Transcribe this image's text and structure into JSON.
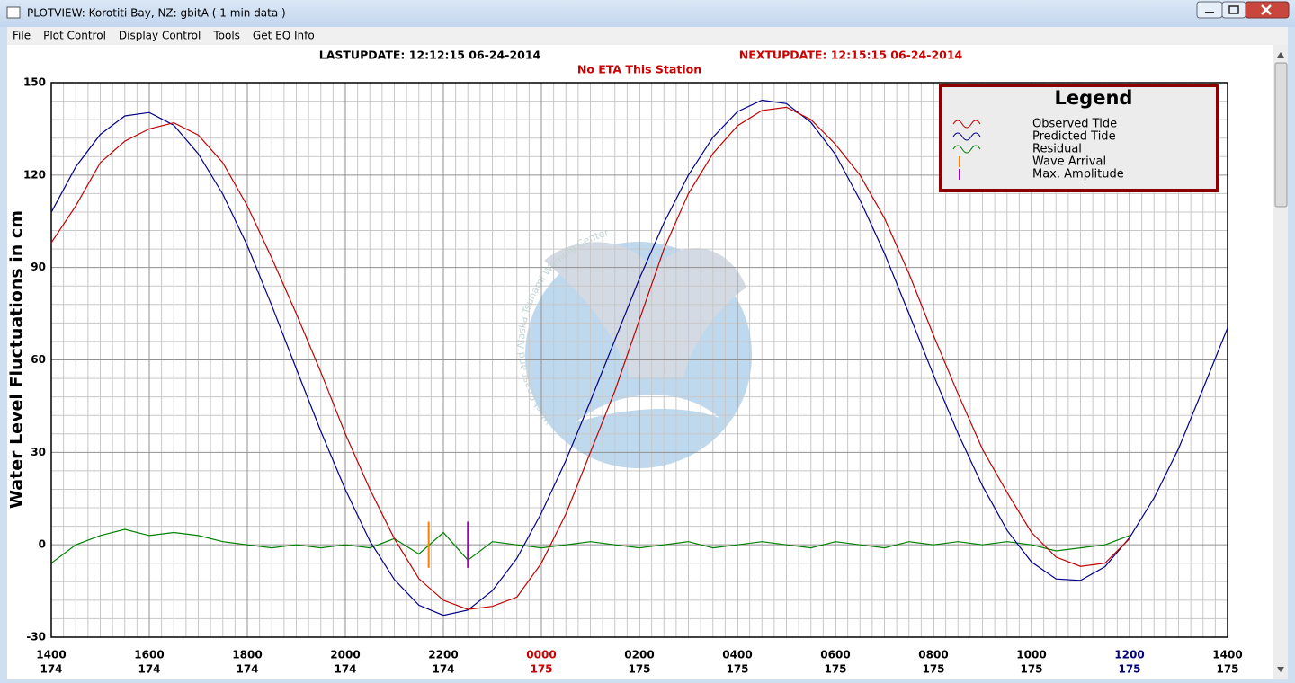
{
  "window": {
    "title": "PLOTVIEW:   Korotiti Bay, NZ: gbitA ( 1 min data )"
  },
  "menu": [
    "File",
    "Plot Control",
    "Display Control",
    "Tools",
    "Get EQ Info"
  ],
  "chart_data": {
    "type": "line",
    "header": {
      "last_update": "LASTUPDATE: 12:12:15 06-24-2014",
      "next_update": "NEXTUPDATE: 12:15:15 06-24-2014",
      "eta": "No ETA This Station"
    },
    "ylabel": "Water Level Fluctuations in cm",
    "legend_title": "Legend",
    "legend": "upper right",
    "watermark": "West Coast and Alaska Tsunami Warning Center",
    "grid": true,
    "xlim": [
      0,
      24
    ],
    "xticks": [
      {
        "value": 0,
        "label": "1400",
        "day": "174",
        "color": "#000000"
      },
      {
        "value": 2,
        "label": "1600",
        "day": "174",
        "color": "#000000"
      },
      {
        "value": 4,
        "label": "1800",
        "day": "174",
        "color": "#000000"
      },
      {
        "value": 6,
        "label": "2000",
        "day": "174",
        "color": "#000000"
      },
      {
        "value": 8,
        "label": "2200",
        "day": "174",
        "color": "#000000"
      },
      {
        "value": 10,
        "label": "0000",
        "day": "175",
        "color": "#cc0000"
      },
      {
        "value": 12,
        "label": "0200",
        "day": "175",
        "color": "#000000"
      },
      {
        "value": 14,
        "label": "0400",
        "day": "175",
        "color": "#000000"
      },
      {
        "value": 16,
        "label": "0600",
        "day": "175",
        "color": "#000000"
      },
      {
        "value": 18,
        "label": "0800",
        "day": "175",
        "color": "#000000"
      },
      {
        "value": 20,
        "label": "1000",
        "day": "175",
        "color": "#000000"
      },
      {
        "value": 22,
        "label": "1200",
        "day": "175",
        "color": "#000080"
      },
      {
        "value": 24,
        "label": "1400",
        "day": "175",
        "color": "#000000"
      }
    ],
    "ylim": [
      -30,
      150
    ],
    "yticks": [
      -30,
      0,
      30,
      60,
      90,
      120,
      150
    ],
    "x": [
      0,
      0.5,
      1,
      1.5,
      2,
      2.5,
      3,
      3.5,
      4,
      4.5,
      5,
      5.5,
      6,
      6.5,
      7,
      7.5,
      8,
      8.5,
      9,
      9.5,
      10,
      10.5,
      11,
      11.5,
      12,
      12.5,
      13,
      13.5,
      14,
      14.5,
      15,
      15.5,
      16,
      16.5,
      17,
      17.5,
      18,
      18.5,
      19,
      19.5,
      20,
      20.5,
      21,
      21.5,
      22,
      22.5,
      23,
      23.5,
      24
    ],
    "series": [
      {
        "name": "Observed Tide",
        "color": "#c00000",
        "values": [
          98,
          110,
          124,
          131,
          135,
          137,
          133,
          124,
          110,
          93,
          75,
          56,
          36,
          18,
          2,
          -11,
          -18,
          -21,
          -20,
          -17,
          -6,
          10,
          30,
          50,
          73,
          96,
          114,
          127,
          136,
          141,
          142,
          138,
          130,
          120,
          106,
          88,
          68,
          49,
          31,
          17,
          4,
          -4,
          -7,
          -6,
          2,
          null,
          null,
          null,
          null
        ]
      },
      {
        "name": "Predicted Tide",
        "color": "#00008b",
        "values": [
          107.9,
          122.7,
          133.2,
          139.2,
          140.3,
          136.2,
          126.9,
          113.8,
          97.1,
          77.6,
          57.1,
          36.8,
          17.9,
          1.2,
          -11.3,
          -19.6,
          -22.9,
          -21.2,
          -14.9,
          -4.4,
          10.3,
          27.4,
          46.6,
          66.5,
          86.4,
          104.5,
          120.0,
          132.3,
          140.6,
          144.3,
          143.2,
          137.1,
          126.7,
          111.9,
          94.6,
          75.0,
          55.1,
          36.1,
          19.1,
          4.7,
          -5.6,
          -11.1,
          -11.6,
          -7.1,
          2.3,
          15.2,
          31.2,
          50.7,
          70.4
        ]
      },
      {
        "name": "Residual",
        "color": "#008000",
        "values": [
          -6,
          0,
          3,
          5,
          3,
          4,
          3,
          1,
          0,
          -1,
          0,
          -1,
          0,
          -1,
          2,
          -3,
          4,
          -5,
          1,
          0,
          -1,
          0,
          1,
          0,
          -1,
          0,
          1,
          -1,
          0,
          1,
          0,
          -1,
          1,
          0,
          -1,
          1,
          0,
          1,
          0,
          1,
          0,
          -2,
          -1,
          0,
          3,
          null,
          null,
          null,
          null
        ]
      }
    ],
    "markers": [
      {
        "name": "Wave Arrival",
        "color": "#ff8000",
        "x": 7.7,
        "low": -7.5,
        "high": 7.5
      },
      {
        "name": "Max. Amplitude",
        "color": "#a000c0",
        "x": 8.5,
        "low": -7.5,
        "high": 7.5
      }
    ]
  }
}
